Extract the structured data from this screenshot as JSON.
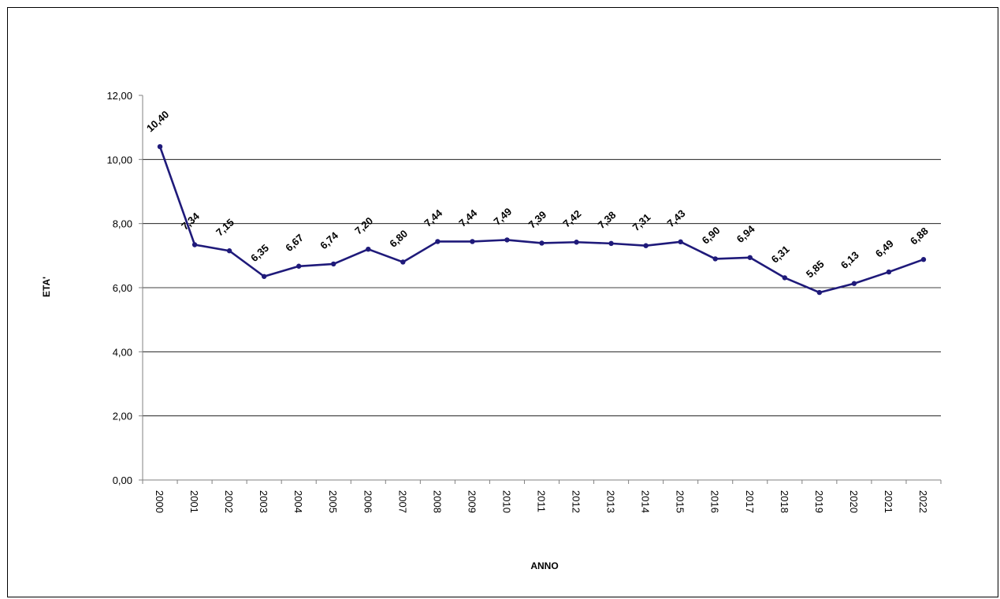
{
  "chart_data": {
    "type": "line",
    "title": "",
    "xlabel": "ANNO",
    "ylabel": "ETA'",
    "ylim": [
      0,
      12
    ],
    "grid": "horizontal",
    "legend": "none",
    "y_ticks": [
      "0,00",
      "2,00",
      "4,00",
      "6,00",
      "8,00",
      "10,00",
      "12,00"
    ],
    "categories": [
      "2000",
      "2001",
      "2002",
      "2003",
      "2004",
      "2005",
      "2006",
      "2007",
      "2008",
      "2009",
      "2010",
      "2011",
      "2012",
      "2013",
      "2014",
      "2015",
      "2016",
      "2017",
      "2018",
      "2019",
      "2020",
      "2021",
      "2022"
    ],
    "values": [
      10.4,
      7.34,
      7.15,
      6.35,
      6.67,
      6.74,
      7.2,
      6.8,
      7.44,
      7.44,
      7.49,
      7.39,
      7.42,
      7.38,
      7.31,
      7.43,
      6.9,
      6.94,
      6.31,
      5.85,
      6.13,
      6.49,
      6.88
    ],
    "data_labels": [
      "10,40",
      "7,34",
      "7,15",
      "6,35",
      "6,67",
      "6,74",
      "7,20",
      "6,80",
      "7,44",
      "7,44",
      "7,49",
      "7,39",
      "7,42",
      "7,38",
      "7,31",
      "7,43",
      "6,90",
      "6,94",
      "6,31",
      "5,85",
      "6,13",
      "6,49",
      "6,88"
    ],
    "line_color": "#1f1a7a"
  }
}
